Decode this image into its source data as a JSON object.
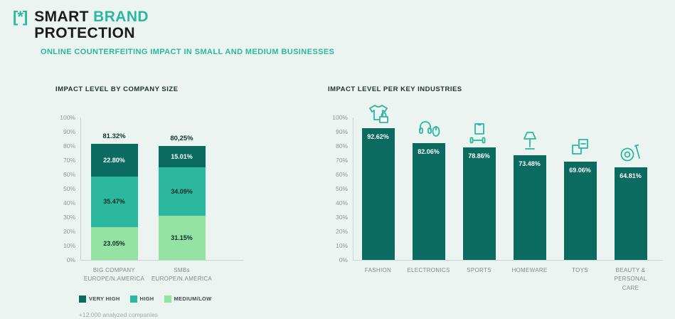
{
  "header": {
    "logo_mark": "[*]",
    "title": {
      "part1": "SMART ",
      "part2": "BRAND",
      "line2": "PROTECTION"
    },
    "subtitle": "ONLINE COUNTERFEITING IMPACT IN SMALL AND MEDIUM BUSINESSES"
  },
  "colors": {
    "very_high": "#0b6b60",
    "high": "#2bb7a0",
    "medium_low": "#94e3a3",
    "accent": "#2bb7a0",
    "background": "#ecf4f1"
  },
  "chart_data": [
    {
      "type": "bar",
      "variant": "stacked",
      "title": "IMPACT LEVEL BY COMPANY SIZE",
      "ylim": [
        0,
        100
      ],
      "grid": false,
      "yticks": [
        "100%",
        "90%",
        "80%",
        "70%",
        "60%",
        "50%",
        "40%",
        "30%",
        "20%",
        "10%",
        "0%"
      ],
      "categories": [
        "BIG COMPANY\nEUROPE/N.AMERICA",
        "SMBs\nEUROPE/N.AMERICA"
      ],
      "totals": [
        "81.32%",
        "80,25%"
      ],
      "series": [
        {
          "name": "VERY HIGH",
          "color": "#0b6b60",
          "values": [
            22.8,
            15.01
          ],
          "value_labels": [
            "22.80%",
            "15.01%"
          ]
        },
        {
          "name": "HIGH",
          "color": "#2bb7a0",
          "values": [
            35.47,
            34.09
          ],
          "value_labels": [
            "35.47%",
            "34.09%"
          ]
        },
        {
          "name": "MEDIUM/LOW",
          "color": "#94e3a3",
          "values": [
            23.05,
            31.15
          ],
          "value_labels": [
            "23.05%",
            "31.15%"
          ]
        }
      ],
      "legend": [
        "VERY HIGH",
        "HIGH",
        "MEDIUM/LOW"
      ],
      "legend_position": "bottom",
      "footnote": "+12.000 analyzed companies"
    },
    {
      "type": "bar",
      "title": "IMPACT LEVEL PER KEY INDUSTRIES",
      "ylim": [
        0,
        100
      ],
      "grid": false,
      "yticks": [
        "100%",
        "90%",
        "80%",
        "70%",
        "60%",
        "50%",
        "40%",
        "30%",
        "20%",
        "10%",
        "0%"
      ],
      "categories": [
        "FASHION",
        "ELECTRONICS",
        "SPORTS",
        "HOMEWARE",
        "TOYS",
        "BEAUTY &\nPERSONAL CARE"
      ],
      "values": [
        92.62,
        82.06,
        78.86,
        73.48,
        69.06,
        64.81
      ],
      "value_labels": [
        "92.62%",
        "82.06%",
        "78.86%",
        "73.48%",
        "69.06%",
        "64.81%"
      ],
      "icons": [
        "fashion-icon",
        "electronics-icon",
        "sports-icon",
        "homeware-icon",
        "toys-icon",
        "beauty-icon"
      ],
      "bar_color": "#0b6b60"
    }
  ]
}
